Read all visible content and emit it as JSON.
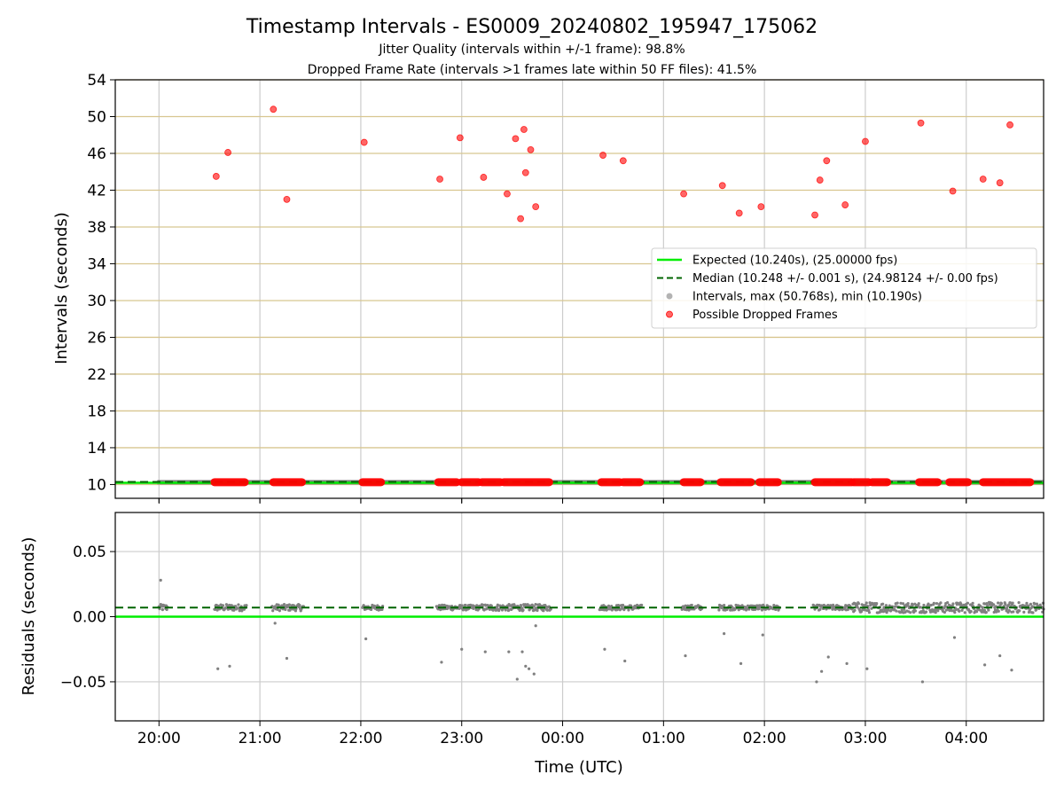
{
  "figure": {
    "title": "Timestamp Intervals - ES0009_20240802_195947_175062",
    "subtitle_1": "Jitter Quality (intervals within +/-1 frame): 98.8%",
    "subtitle_2": "Dropped Frame Rate (intervals >1 frames late within 50 FF files): 41.5%"
  },
  "colors": {
    "expected": "#00ee00",
    "median": "#006400",
    "intervals": "#808080",
    "dropped": "#ff0000",
    "hgrid": "#d8c690",
    "vgrid": "#cccccc"
  },
  "chart_data": [
    {
      "type": "scatter",
      "panel": "intervals",
      "ylabel": "Intervals (seconds)",
      "ylim": [
        8.5,
        54
      ],
      "yticks": [
        10,
        14,
        18,
        22,
        26,
        30,
        34,
        38,
        42,
        46,
        50,
        54
      ],
      "xlim": [
        "19:34",
        "04:46"
      ],
      "grid": true,
      "legend_position": "center-right",
      "legend": [
        "Expected (10.240s), (25.00000 fps)",
        "Median (10.248 +/- 0.001 s), (24.98124 +/- 0.00 fps)",
        "Intervals, max (50.768s), min (10.190s)",
        "Possible Dropped Frames"
      ],
      "series": [
        {
          "name": "Expected (10.240s), (25.00000 fps)",
          "kind": "hline",
          "y": 10.24
        },
        {
          "name": "Median (10.248 +/- 0.001 s), (24.98124 +/- 0.00 fps)",
          "kind": "hline",
          "y": 10.248
        },
        {
          "name": "Intervals, max (50.768s), min (10.190s)",
          "kind": "band",
          "x_range": [
            "19:59",
            "04:46"
          ],
          "y": 10.25
        },
        {
          "name": "Possible Dropped Frames",
          "kind": "scatter",
          "points": [
            [
              "20:34",
              43.5
            ],
            [
              "20:41",
              46.1
            ],
            [
              "21:08",
              50.8
            ],
            [
              "21:16",
              41.0
            ],
            [
              "22:02",
              47.2
            ],
            [
              "22:47",
              43.2
            ],
            [
              "22:59",
              47.7
            ],
            [
              "23:13",
              43.4
            ],
            [
              "23:27",
              41.6
            ],
            [
              "23:32",
              47.6
            ],
            [
              "23:35",
              38.9
            ],
            [
              "23:37",
              48.6
            ],
            [
              "23:38",
              43.9
            ],
            [
              "23:41",
              46.4
            ],
            [
              "23:44",
              40.2
            ],
            [
              "00:24",
              45.8
            ],
            [
              "00:36",
              45.2
            ],
            [
              "01:12",
              41.6
            ],
            [
              "01:35",
              42.5
            ],
            [
              "01:45",
              39.5
            ],
            [
              "01:58",
              40.2
            ],
            [
              "02:30",
              39.3
            ],
            [
              "02:33",
              43.1
            ],
            [
              "02:37",
              45.2
            ],
            [
              "02:48",
              40.4
            ],
            [
              "03:00",
              47.3
            ],
            [
              "03:33",
              49.3
            ],
            [
              "03:52",
              41.9
            ],
            [
              "04:10",
              43.2
            ],
            [
              "04:20",
              42.8
            ],
            [
              "04:26",
              49.1
            ]
          ],
          "baseline_runs": [
            [
              "20:33",
              "20:51"
            ],
            [
              "21:08",
              "21:25"
            ],
            [
              "22:01",
              "22:12"
            ],
            [
              "22:46",
              "22:57"
            ],
            [
              "23:00",
              "23:10"
            ],
            [
              "23:12",
              "23:23"
            ],
            [
              "23:25",
              "23:52"
            ],
            [
              "00:23",
              "00:34"
            ],
            [
              "00:36",
              "00:46"
            ],
            [
              "01:12",
              "01:22"
            ],
            [
              "01:34",
              "01:52"
            ],
            [
              "01:57",
              "02:08"
            ],
            [
              "02:30",
              "02:52"
            ],
            [
              "02:53",
              "03:02"
            ],
            [
              "03:04",
              "03:13"
            ],
            [
              "03:32",
              "03:43"
            ],
            [
              "03:50",
              "04:01"
            ],
            [
              "04:10",
              "04:38"
            ]
          ]
        }
      ]
    },
    {
      "type": "scatter",
      "panel": "residuals",
      "xlabel": "Time (UTC)",
      "ylabel": "Residuals (seconds)",
      "ylim": [
        -0.08,
        0.08
      ],
      "yticks": [
        0.05,
        0.0,
        -0.05
      ],
      "ytick_labels": [
        "0.05",
        "0.00",
        "−0.05"
      ],
      "xticks": [
        "20:00",
        "21:00",
        "22:00",
        "23:00",
        "00:00",
        "01:00",
        "02:00",
        "03:00",
        "04:00"
      ],
      "grid": true,
      "series": [
        {
          "name": "Expected",
          "kind": "hline",
          "y": 0.0
        },
        {
          "name": "Median",
          "kind": "hline",
          "y": 0.007
        },
        {
          "name": "Intervals",
          "kind": "scatter",
          "points": [
            [
              "20:01",
              0.028
            ],
            [
              "20:35",
              -0.04
            ],
            [
              "20:42",
              -0.038
            ],
            [
              "21:09",
              -0.005
            ],
            [
              "21:16",
              -0.032
            ],
            [
              "22:03",
              -0.017
            ],
            [
              "22:48",
              -0.035
            ],
            [
              "23:00",
              -0.025
            ],
            [
              "23:14",
              -0.027
            ],
            [
              "23:28",
              -0.027
            ],
            [
              "23:33",
              -0.048
            ],
            [
              "23:36",
              -0.027
            ],
            [
              "23:38",
              -0.038
            ],
            [
              "23:40",
              -0.04
            ],
            [
              "23:43",
              -0.044
            ],
            [
              "23:44",
              -0.007
            ],
            [
              "00:25",
              -0.025
            ],
            [
              "00:37",
              -0.034
            ],
            [
              "01:13",
              -0.03
            ],
            [
              "01:36",
              -0.013
            ],
            [
              "01:46",
              -0.036
            ],
            [
              "01:59",
              -0.014
            ],
            [
              "02:31",
              -0.05
            ],
            [
              "02:34",
              -0.042
            ],
            [
              "02:38",
              -0.031
            ],
            [
              "02:49",
              -0.036
            ],
            [
              "03:01",
              -0.04
            ],
            [
              "03:34",
              -0.05
            ],
            [
              "03:53",
              -0.016
            ],
            [
              "04:11",
              -0.037
            ],
            [
              "04:20",
              -0.03
            ],
            [
              "04:27",
              -0.041
            ]
          ],
          "clusters": [
            [
              "20:00",
              "20:05",
              0.0025
            ],
            [
              "20:33",
              "20:52",
              0.0025
            ],
            [
              "21:07",
              "21:26",
              0.0025
            ],
            [
              "22:01",
              "22:13",
              0.002
            ],
            [
              "22:45",
              "23:11",
              0.002
            ],
            [
              "23:12",
              "23:53",
              0.0025
            ],
            [
              "00:22",
              "00:47",
              0.002
            ],
            [
              "01:11",
              "01:23",
              0.002
            ],
            [
              "01:33",
              "02:09",
              0.002
            ],
            [
              "02:29",
              "02:52",
              0.002
            ],
            [
              "02:52",
              "04:46",
              0.004
            ]
          ]
        }
      ]
    }
  ]
}
